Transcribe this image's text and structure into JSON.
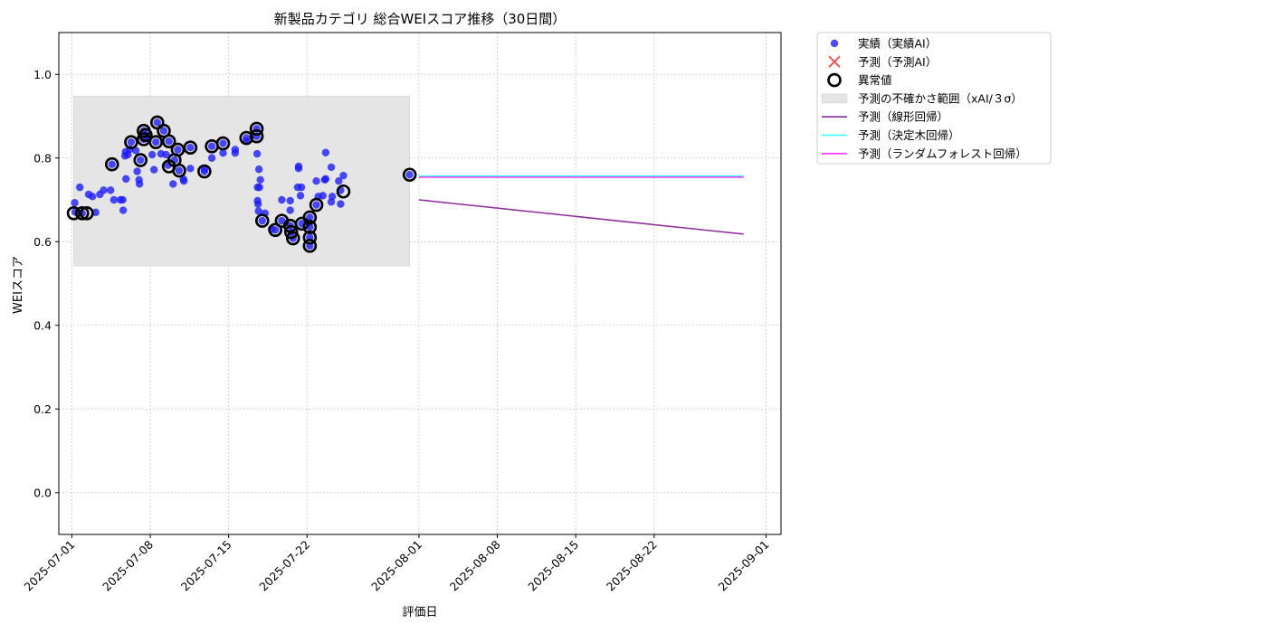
{
  "chart_data": {
    "type": "scatter",
    "title": "新製品カテゴリ 総合WEIスコア推移（30日間）",
    "xlabel": "評価日",
    "ylabel": "WEIスコア",
    "xlim": [
      "2025-06-29T20:00",
      "2025-09-02T08:00"
    ],
    "ylim": [
      -0.1,
      1.1
    ],
    "x_ticks": [
      "2025-07-01",
      "2025-07-08",
      "2025-07-15",
      "2025-07-22",
      "2025-08-01",
      "2025-08-08",
      "2025-08-15",
      "2025-08-22",
      "2025-09-01"
    ],
    "y_ticks": [
      0.0,
      0.2,
      0.4,
      0.6,
      0.8,
      1.0
    ],
    "y_tick_labels": [
      "0.0",
      "0.2",
      "0.4",
      "0.6",
      "0.8",
      "1.0"
    ],
    "grid": true,
    "legend_position": "outside-top-right",
    "uncertainty_band": {
      "label": "予測の不確かさ範囲（xAI/３σ）",
      "x_start": "2025-07-01T04:00",
      "x_end": "2025-07-31T04:00",
      "y_low": 0.542,
      "y_high": 0.948,
      "color": "#e5e5e5"
    },
    "series": [
      {
        "name": "実績（実績AI）",
        "kind": "scatter",
        "color": "#1a1aff",
        "points": [
          [
            "2025-07-01T06:00",
            0.693
          ],
          [
            "2025-07-01T07:00",
            0.671
          ],
          [
            "2025-07-01T17:00",
            0.73
          ],
          [
            "2025-07-01T22:00",
            0.668
          ],
          [
            "2025-07-02T12:00",
            0.713
          ],
          [
            "2025-07-02T20:00",
            0.708
          ],
          [
            "2025-07-03T03:00",
            0.67
          ],
          [
            "2025-07-03T12:00",
            0.713
          ],
          [
            "2025-07-03T20:00",
            0.723
          ],
          [
            "2025-07-04T11:00",
            0.723
          ],
          [
            "2025-07-04T14:00",
            0.785
          ],
          [
            "2025-07-04T18:00",
            0.7
          ],
          [
            "2025-07-05T08:00",
            0.7
          ],
          [
            "2025-07-05T13:00",
            0.7
          ],
          [
            "2025-07-05T14:00",
            0.675
          ],
          [
            "2025-07-05T18:00",
            0.805
          ],
          [
            "2025-07-05T19:00",
            0.815
          ],
          [
            "2025-07-05T20:00",
            0.75
          ],
          [
            "2025-07-06T00:00",
            0.808
          ],
          [
            "2025-07-06T04:00",
            0.821
          ],
          [
            "2025-07-06T07:00",
            0.838
          ],
          [
            "2025-07-06T17:00",
            0.818
          ],
          [
            "2025-07-06T20:00",
            0.768
          ],
          [
            "2025-07-07T00:00",
            0.748
          ],
          [
            "2025-07-07T01:00",
            0.738
          ],
          [
            "2025-07-07T03:00",
            0.795
          ],
          [
            "2025-07-07T10:00",
            0.865
          ],
          [
            "2025-07-07T10:00",
            0.845
          ],
          [
            "2025-07-07T14:00",
            0.855
          ],
          [
            "2025-07-07T20:00",
            0.848
          ],
          [
            "2025-07-08T04:00",
            0.808
          ],
          [
            "2025-07-08T08:00",
            0.772
          ],
          [
            "2025-07-08T12:00",
            0.838
          ],
          [
            "2025-07-08T15:00",
            0.885
          ],
          [
            "2025-07-08T23:00",
            0.81
          ],
          [
            "2025-07-09T05:00",
            0.865
          ],
          [
            "2025-07-09T10:00",
            0.808
          ],
          [
            "2025-07-09T14:00",
            0.783
          ],
          [
            "2025-07-09T16:00",
            0.84
          ],
          [
            "2025-07-10T01:00",
            0.738
          ],
          [
            "2025-07-10T04:00",
            0.795
          ],
          [
            "2025-07-10T11:00",
            0.82
          ],
          [
            "2025-07-10T14:00",
            0.77
          ],
          [
            "2025-07-10T23:00",
            0.75
          ],
          [
            "2025-07-11T00:00",
            0.745
          ],
          [
            "2025-07-11T14:00",
            0.825
          ],
          [
            "2025-07-11T14:00",
            0.775
          ],
          [
            "2025-07-12T20:00",
            0.773
          ],
          [
            "2025-07-12T20:00",
            0.768
          ],
          [
            "2025-07-13T12:00",
            0.8
          ],
          [
            "2025-07-13T12:00",
            0.828
          ],
          [
            "2025-07-14T12:00",
            0.835
          ],
          [
            "2025-07-14T12:00",
            0.812
          ],
          [
            "2025-07-15T14:00",
            0.812
          ],
          [
            "2025-07-15T14:00",
            0.82
          ],
          [
            "2025-07-16T14:00",
            0.848
          ],
          [
            "2025-07-16T14:00",
            0.84
          ],
          [
            "2025-07-17T12:00",
            0.87
          ],
          [
            "2025-07-17T12:00",
            0.852
          ],
          [
            "2025-07-17T13:00",
            0.81
          ],
          [
            "2025-07-17T14:00",
            0.73
          ],
          [
            "2025-07-17T14:00",
            0.698
          ],
          [
            "2025-07-17T15:00",
            0.69
          ],
          [
            "2025-07-17T16:00",
            0.673
          ],
          [
            "2025-07-17T17:00",
            0.773
          ],
          [
            "2025-07-17T18:00",
            0.73
          ],
          [
            "2025-07-17T20:00",
            0.748
          ],
          [
            "2025-07-18T00:00",
            0.65
          ],
          [
            "2025-07-18T06:00",
            0.668
          ],
          [
            "2025-07-18T20:00",
            0.63
          ],
          [
            "2025-07-19T04:00",
            0.628
          ],
          [
            "2025-07-19T18:00",
            0.65
          ],
          [
            "2025-07-19T18:00",
            0.7
          ],
          [
            "2025-07-20T12:00",
            0.698
          ],
          [
            "2025-07-20T12:00",
            0.675
          ],
          [
            "2025-07-20T12:00",
            0.638
          ],
          [
            "2025-07-20T14:00",
            0.623
          ],
          [
            "2025-07-20T18:00",
            0.608
          ],
          [
            "2025-07-21T04:00",
            0.73
          ],
          [
            "2025-07-21T06:00",
            0.775
          ],
          [
            "2025-07-21T06:00",
            0.78
          ],
          [
            "2025-07-21T10:00",
            0.71
          ],
          [
            "2025-07-21T12:00",
            0.73
          ],
          [
            "2025-07-21T13:00",
            0.643
          ],
          [
            "2025-07-22T04:00",
            0.645
          ],
          [
            "2025-07-22T06:00",
            0.658
          ],
          [
            "2025-07-22T06:00",
            0.635
          ],
          [
            "2025-07-22T06:00",
            0.61
          ],
          [
            "2025-07-22T06:00",
            0.59
          ],
          [
            "2025-07-22T20:00",
            0.745
          ],
          [
            "2025-07-22T20:00",
            0.688
          ],
          [
            "2025-07-23T00:00",
            0.708
          ],
          [
            "2025-07-23T10:00",
            0.71
          ],
          [
            "2025-07-23T14:00",
            0.748
          ],
          [
            "2025-07-23T16:00",
            0.813
          ],
          [
            "2025-07-23T16:00",
            0.75
          ],
          [
            "2025-07-24T04:00",
            0.778
          ],
          [
            "2025-07-24T04:00",
            0.695
          ],
          [
            "2025-07-24T06:00",
            0.708
          ],
          [
            "2025-07-24T20:00",
            0.745
          ],
          [
            "2025-07-25T00:00",
            0.69
          ],
          [
            "2025-07-25T00:00",
            0.723
          ],
          [
            "2025-07-25T06:00",
            0.758
          ],
          [
            "2025-07-31T04:00",
            0.76
          ]
        ]
      },
      {
        "name": "予測（予測AI）",
        "kind": "marker-x",
        "color": "#ff4040",
        "points": []
      },
      {
        "name": "異常値",
        "kind": "outlier-ring",
        "color": "#000000",
        "points": [
          [
            "2025-07-01T04:00",
            0.668
          ],
          [
            "2025-07-01T22:00",
            0.668
          ],
          [
            "2025-07-02T08:00",
            0.668
          ],
          [
            "2025-07-04T14:00",
            0.785
          ],
          [
            "2025-07-06T07:00",
            0.838
          ],
          [
            "2025-07-07T03:00",
            0.795
          ],
          [
            "2025-07-07T10:00",
            0.865
          ],
          [
            "2025-07-07T10:00",
            0.845
          ],
          [
            "2025-07-07T14:00",
            0.855
          ],
          [
            "2025-07-08T12:00",
            0.838
          ],
          [
            "2025-07-08T15:00",
            0.885
          ],
          [
            "2025-07-09T05:00",
            0.865
          ],
          [
            "2025-07-09T16:00",
            0.84
          ],
          [
            "2025-07-10T04:00",
            0.795
          ],
          [
            "2025-07-10T14:00",
            0.77
          ],
          [
            "2025-07-10T11:00",
            0.82
          ],
          [
            "2025-07-09T16:00",
            0.78
          ],
          [
            "2025-07-11T14:00",
            0.825
          ],
          [
            "2025-07-12T20:00",
            0.768
          ],
          [
            "2025-07-13T12:00",
            0.828
          ],
          [
            "2025-07-14T12:00",
            0.835
          ],
          [
            "2025-07-16T14:00",
            0.848
          ],
          [
            "2025-07-17T12:00",
            0.87
          ],
          [
            "2025-07-17T12:00",
            0.852
          ],
          [
            "2025-07-18T00:00",
            0.65
          ],
          [
            "2025-07-19T04:00",
            0.628
          ],
          [
            "2025-07-19T18:00",
            0.65
          ],
          [
            "2025-07-20T12:00",
            0.638
          ],
          [
            "2025-07-20T14:00",
            0.623
          ],
          [
            "2025-07-20T18:00",
            0.608
          ],
          [
            "2025-07-21T13:00",
            0.643
          ],
          [
            "2025-07-22T06:00",
            0.658
          ],
          [
            "2025-07-22T06:00",
            0.635
          ],
          [
            "2025-07-22T06:00",
            0.61
          ],
          [
            "2025-07-22T06:00",
            0.59
          ],
          [
            "2025-07-22T20:00",
            0.688
          ],
          [
            "2025-07-25T06:00",
            0.72
          ],
          [
            "2025-07-31T04:00",
            0.76
          ]
        ]
      },
      {
        "name": "予測（線形回帰）",
        "kind": "line",
        "color": "#8b2a9b",
        "points": [
          [
            "2025-08-01T00:00",
            0.7
          ],
          [
            "2025-08-30T00:00",
            0.618
          ]
        ]
      },
      {
        "name": "予測（決定木回帰）",
        "kind": "line",
        "color": "#33ffff",
        "points": [
          [
            "2025-08-01T00:00",
            0.757
          ],
          [
            "2025-08-30T00:00",
            0.757
          ]
        ]
      },
      {
        "name": "予測（ランダムフォレスト回帰）",
        "kind": "line",
        "color": "#ff33ff",
        "points": [
          [
            "2025-08-01T00:00",
            0.754
          ],
          [
            "2025-08-30T00:00",
            0.754
          ]
        ]
      }
    ],
    "legend_entries": [
      {
        "label": "実績（実績AI）",
        "symbol": "dot",
        "color": "#1a1aff"
      },
      {
        "label": "予測（予測AI）",
        "symbol": "x",
        "color": "#ff4040"
      },
      {
        "label": "異常値",
        "symbol": "ring",
        "color": "#000000"
      },
      {
        "label": "予測の不確かさ範囲（xAI/３σ）",
        "symbol": "patch",
        "color": "#e5e5e5"
      },
      {
        "label": "予測（線形回帰）",
        "symbol": "line",
        "color": "#8b2a9b"
      },
      {
        "label": "予測（決定木回帰）",
        "symbol": "line",
        "color": "#33ffff"
      },
      {
        "label": "予測（ランダムフォレスト回帰）",
        "symbol": "line",
        "color": "#ff33ff"
      }
    ]
  }
}
